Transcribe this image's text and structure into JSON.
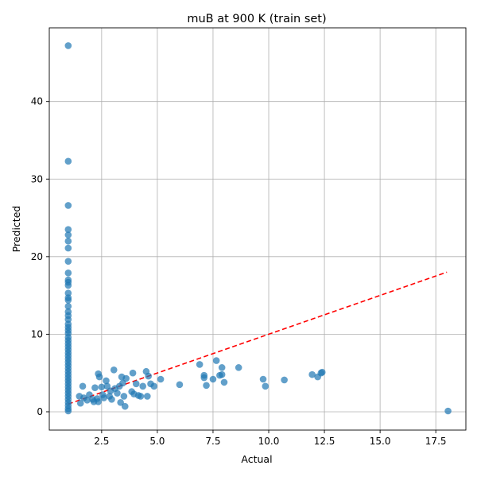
{
  "chart_data": {
    "type": "scatter",
    "title": "muB at 900 K (train set)",
    "xlabel": "Actual",
    "ylabel": "Predicted",
    "xlim": [
      0.15,
      18.85
    ],
    "ylim": [
      -2.36,
      49.5
    ],
    "xticks": [
      "2.5",
      "5.0",
      "7.5",
      "10.0",
      "12.5",
      "15.0",
      "17.5"
    ],
    "yticks": [
      "0",
      "10",
      "20",
      "30",
      "40"
    ],
    "grid": true,
    "colors": {
      "points": "#1f77b4",
      "ideal_line": "#ff0000"
    },
    "ideal_line": {
      "style": "dashed",
      "x": [
        1.0,
        18.0
      ],
      "y": [
        1.0,
        18.0
      ]
    },
    "series": [
      {
        "points": [
          [
            1.0,
            47.2
          ],
          [
            1.0,
            32.3
          ],
          [
            1.0,
            26.6
          ],
          [
            1.0,
            23.5
          ],
          [
            1.0,
            22.8
          ],
          [
            1.0,
            22.0
          ],
          [
            1.0,
            21.1
          ],
          [
            1.0,
            19.4
          ],
          [
            1.0,
            17.9
          ],
          [
            1.0,
            17.0
          ],
          [
            1.0,
            16.7
          ],
          [
            1.0,
            16.3
          ],
          [
            1.0,
            15.3
          ],
          [
            1.0,
            14.7
          ],
          [
            1.0,
            14.4
          ],
          [
            1.0,
            13.6
          ],
          [
            1.0,
            12.9
          ],
          [
            1.0,
            12.4
          ],
          [
            1.0,
            11.9
          ],
          [
            1.0,
            11.3
          ],
          [
            1.0,
            10.9
          ],
          [
            1.0,
            10.5
          ],
          [
            1.0,
            10.1
          ],
          [
            1.0,
            9.6
          ],
          [
            1.0,
            9.2
          ],
          [
            1.0,
            8.8
          ],
          [
            1.0,
            8.4
          ],
          [
            1.0,
            8.0
          ],
          [
            1.0,
            7.6
          ],
          [
            1.0,
            7.2
          ],
          [
            1.0,
            6.8
          ],
          [
            1.0,
            6.4
          ],
          [
            1.0,
            6.0
          ],
          [
            1.0,
            5.6
          ],
          [
            1.0,
            5.2
          ],
          [
            1.0,
            4.8
          ],
          [
            1.0,
            4.4
          ],
          [
            1.0,
            4.0
          ],
          [
            1.0,
            3.6
          ],
          [
            1.0,
            3.2
          ],
          [
            1.0,
            2.8
          ],
          [
            1.0,
            2.4
          ],
          [
            1.0,
            2.0
          ],
          [
            1.0,
            1.6
          ],
          [
            1.0,
            1.2
          ],
          [
            1.0,
            0.8
          ],
          [
            1.0,
            0.4
          ],
          [
            1.0,
            0.1
          ],
          [
            1.5,
            2.0
          ],
          [
            1.55,
            1.1
          ],
          [
            1.65,
            3.3
          ],
          [
            1.7,
            1.8
          ],
          [
            1.85,
            1.5
          ],
          [
            1.95,
            2.2
          ],
          [
            2.1,
            1.6
          ],
          [
            2.15,
            1.3
          ],
          [
            2.2,
            3.1
          ],
          [
            2.3,
            1.7
          ],
          [
            2.35,
            4.9
          ],
          [
            2.35,
            1.3
          ],
          [
            2.4,
            4.5
          ],
          [
            2.5,
            3.2
          ],
          [
            2.55,
            2.2
          ],
          [
            2.6,
            1.8
          ],
          [
            2.7,
            4.0
          ],
          [
            2.75,
            3.3
          ],
          [
            2.85,
            2.0
          ],
          [
            2.9,
            2.7
          ],
          [
            2.95,
            1.6
          ],
          [
            3.05,
            5.4
          ],
          [
            3.1,
            3.0
          ],
          [
            3.2,
            2.4
          ],
          [
            3.3,
            3.3
          ],
          [
            3.35,
            1.2
          ],
          [
            3.4,
            4.5
          ],
          [
            3.45,
            3.7
          ],
          [
            3.5,
            2.0
          ],
          [
            3.55,
            0.7
          ],
          [
            3.6,
            4.3
          ],
          [
            3.85,
            2.6
          ],
          [
            3.9,
            5.0
          ],
          [
            3.95,
            2.3
          ],
          [
            4.05,
            3.6
          ],
          [
            4.15,
            2.1
          ],
          [
            4.25,
            2.0
          ],
          [
            4.35,
            3.3
          ],
          [
            4.5,
            5.2
          ],
          [
            4.55,
            2.0
          ],
          [
            4.6,
            4.6
          ],
          [
            4.7,
            3.6
          ],
          [
            4.85,
            3.3
          ],
          [
            5.15,
            4.2
          ],
          [
            6.0,
            3.5
          ],
          [
            6.9,
            6.1
          ],
          [
            7.1,
            4.7
          ],
          [
            7.1,
            4.4
          ],
          [
            7.2,
            3.4
          ],
          [
            7.5,
            4.2
          ],
          [
            7.65,
            6.6
          ],
          [
            7.8,
            4.7
          ],
          [
            7.9,
            5.7
          ],
          [
            7.9,
            4.8
          ],
          [
            8.0,
            3.8
          ],
          [
            8.65,
            5.7
          ],
          [
            9.75,
            4.2
          ],
          [
            9.85,
            3.3
          ],
          [
            10.7,
            4.1
          ],
          [
            11.95,
            4.8
          ],
          [
            12.2,
            4.5
          ],
          [
            12.35,
            5.0
          ],
          [
            12.4,
            5.1
          ],
          [
            18.05,
            0.1
          ]
        ]
      }
    ]
  }
}
